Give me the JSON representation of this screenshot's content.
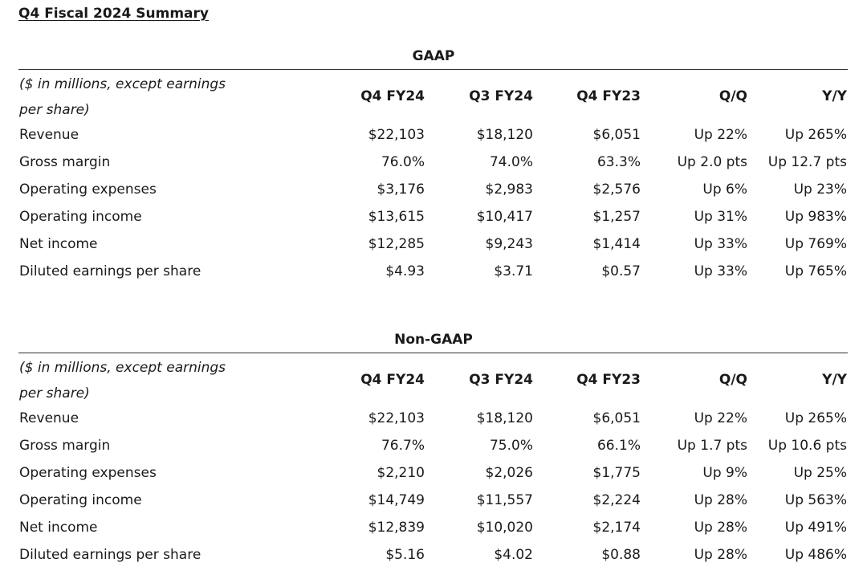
{
  "page_title": "Q4 Fiscal 2024 Summary",
  "columns": [
    "Q4 FY24",
    "Q3 FY24",
    "Q4 FY23",
    "Q/Q",
    "Y/Y"
  ],
  "unit_note": "($ in millions, except earnings per share)",
  "gaap": {
    "title": "GAAP",
    "rows": [
      {
        "label": "Revenue",
        "values": [
          "$22,103",
          "$18,120",
          "$6,051",
          "Up 22%",
          "Up 265%"
        ]
      },
      {
        "label": "Gross margin",
        "values": [
          "76.0%",
          "74.0%",
          "63.3%",
          "Up 2.0 pts",
          "Up 12.7 pts"
        ]
      },
      {
        "label": "Operating expenses",
        "values": [
          "$3,176",
          "$2,983",
          "$2,576",
          "Up 6%",
          "Up 23%"
        ]
      },
      {
        "label": "Operating income",
        "values": [
          "$13,615",
          "$10,417",
          "$1,257",
          "Up 31%",
          "Up 983%"
        ]
      },
      {
        "label": "Net income",
        "values": [
          "$12,285",
          "$9,243",
          "$1,414",
          "Up 33%",
          "Up 769%"
        ]
      },
      {
        "label": "Diluted earnings per share",
        "values": [
          "$4.93",
          "$3.71",
          "$0.57",
          "Up 33%",
          "Up 765%"
        ]
      }
    ]
  },
  "non_gaap": {
    "title": "Non-GAAP",
    "rows": [
      {
        "label": "Revenue",
        "values": [
          "$22,103",
          "$18,120",
          "$6,051",
          "Up 22%",
          "Up 265%"
        ]
      },
      {
        "label": "Gross margin",
        "values": [
          "76.7%",
          "75.0%",
          "66.1%",
          "Up 1.7 pts",
          "Up 10.6 pts"
        ]
      },
      {
        "label": "Operating expenses",
        "values": [
          "$2,210",
          "$2,026",
          "$1,775",
          "Up 9%",
          "Up 25%"
        ]
      },
      {
        "label": "Operating income",
        "values": [
          "$14,749",
          "$11,557",
          "$2,224",
          "Up 28%",
          "Up 563%"
        ]
      },
      {
        "label": "Net income",
        "values": [
          "$12,839",
          "$10,020",
          "$2,174",
          "Up 28%",
          "Up 491%"
        ]
      },
      {
        "label": "Diluted earnings per share",
        "values": [
          "$5.16",
          "$4.02",
          "$0.88",
          "Up 28%",
          "Up 486%"
        ]
      }
    ]
  }
}
